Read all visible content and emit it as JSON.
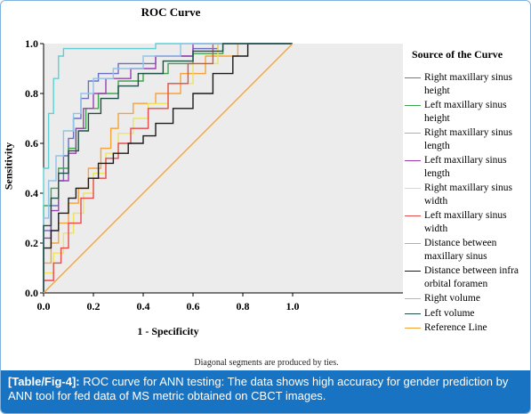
{
  "chart_data": {
    "type": "line",
    "title": "ROC Curve",
    "xlabel": "1 - Specificity",
    "ylabel": "Sensitivity",
    "xlim": [
      0,
      1
    ],
    "ylim": [
      0,
      1
    ],
    "x_ticks": [
      "0.0",
      "0.2",
      "0.4",
      "0.6",
      "0.8",
      "1.0"
    ],
    "y_ticks": [
      "0.0",
      "0.2",
      "0.4",
      "0.6",
      "0.8",
      "1.0"
    ],
    "grid": false,
    "legend_title": "Source of the Curve",
    "legend_position": "right",
    "footnote": "Diagonal segments are produced by ties.",
    "series": [
      {
        "name": "Right maxillary sinus height",
        "color": "#6a6fc0",
        "points": [
          [
            0,
            0
          ],
          [
            0,
            0.25
          ],
          [
            0.03,
            0.25
          ],
          [
            0.03,
            0.35
          ],
          [
            0.06,
            0.35
          ],
          [
            0.06,
            0.45
          ],
          [
            0.08,
            0.45
          ],
          [
            0.08,
            0.55
          ],
          [
            0.1,
            0.55
          ],
          [
            0.1,
            0.62
          ],
          [
            0.12,
            0.62
          ],
          [
            0.12,
            0.7
          ],
          [
            0.15,
            0.7
          ],
          [
            0.15,
            0.78
          ],
          [
            0.18,
            0.78
          ],
          [
            0.18,
            0.85
          ],
          [
            0.22,
            0.85
          ],
          [
            0.22,
            0.88
          ],
          [
            0.3,
            0.88
          ],
          [
            0.3,
            0.92
          ],
          [
            0.45,
            0.92
          ],
          [
            0.45,
            0.95
          ],
          [
            0.6,
            0.95
          ],
          [
            0.6,
            0.98
          ],
          [
            0.7,
            0.98
          ],
          [
            0.7,
            1
          ],
          [
            1,
            1
          ]
        ]
      },
      {
        "name": "Left maxillary sinus height",
        "color": "#3fa34d",
        "points": [
          [
            0,
            0
          ],
          [
            0,
            0.35
          ],
          [
            0.03,
            0.35
          ],
          [
            0.03,
            0.42
          ],
          [
            0.06,
            0.42
          ],
          [
            0.06,
            0.5
          ],
          [
            0.1,
            0.5
          ],
          [
            0.1,
            0.58
          ],
          [
            0.13,
            0.58
          ],
          [
            0.13,
            0.66
          ],
          [
            0.17,
            0.66
          ],
          [
            0.17,
            0.74
          ],
          [
            0.22,
            0.74
          ],
          [
            0.22,
            0.8
          ],
          [
            0.3,
            0.8
          ],
          [
            0.3,
            0.85
          ],
          [
            0.4,
            0.85
          ],
          [
            0.4,
            0.88
          ],
          [
            0.5,
            0.88
          ],
          [
            0.5,
            0.92
          ],
          [
            0.6,
            0.92
          ],
          [
            0.6,
            0.96
          ],
          [
            0.72,
            0.96
          ],
          [
            0.72,
            1
          ],
          [
            1,
            1
          ]
        ]
      },
      {
        "name": "Right maxillary sinus length",
        "color": "#f5a23a",
        "points": [
          [
            0,
            0
          ],
          [
            0,
            0.12
          ],
          [
            0.03,
            0.12
          ],
          [
            0.03,
            0.2
          ],
          [
            0.06,
            0.2
          ],
          [
            0.06,
            0.28
          ],
          [
            0.1,
            0.28
          ],
          [
            0.1,
            0.36
          ],
          [
            0.14,
            0.36
          ],
          [
            0.14,
            0.42
          ],
          [
            0.18,
            0.42
          ],
          [
            0.18,
            0.5
          ],
          [
            0.23,
            0.5
          ],
          [
            0.23,
            0.58
          ],
          [
            0.27,
            0.58
          ],
          [
            0.27,
            0.66
          ],
          [
            0.3,
            0.66
          ],
          [
            0.3,
            0.72
          ],
          [
            0.36,
            0.72
          ],
          [
            0.36,
            0.76
          ],
          [
            0.45,
            0.76
          ],
          [
            0.45,
            0.8
          ],
          [
            0.55,
            0.8
          ],
          [
            0.55,
            0.88
          ],
          [
            0.65,
            0.88
          ],
          [
            0.65,
            0.95
          ],
          [
            0.78,
            0.95
          ],
          [
            0.78,
            1
          ],
          [
            1,
            1
          ]
        ]
      },
      {
        "name": "Left maxillary sinus length",
        "color": "#9b3fb0",
        "points": [
          [
            0,
            0
          ],
          [
            0,
            0.22
          ],
          [
            0.03,
            0.22
          ],
          [
            0.03,
            0.33
          ],
          [
            0.06,
            0.33
          ],
          [
            0.06,
            0.45
          ],
          [
            0.1,
            0.45
          ],
          [
            0.1,
            0.56
          ],
          [
            0.13,
            0.56
          ],
          [
            0.13,
            0.66
          ],
          [
            0.16,
            0.66
          ],
          [
            0.16,
            0.74
          ],
          [
            0.2,
            0.74
          ],
          [
            0.2,
            0.8
          ],
          [
            0.25,
            0.8
          ],
          [
            0.25,
            0.86
          ],
          [
            0.35,
            0.86
          ],
          [
            0.35,
            0.9
          ],
          [
            0.45,
            0.9
          ],
          [
            0.45,
            0.95
          ],
          [
            0.6,
            0.95
          ],
          [
            0.6,
            1
          ],
          [
            1,
            1
          ]
        ]
      },
      {
        "name": "Right maxillary sinus width",
        "color": "#efe35a",
        "points": [
          [
            0,
            0
          ],
          [
            0,
            0.08
          ],
          [
            0.04,
            0.08
          ],
          [
            0.04,
            0.16
          ],
          [
            0.08,
            0.16
          ],
          [
            0.08,
            0.24
          ],
          [
            0.12,
            0.24
          ],
          [
            0.12,
            0.32
          ],
          [
            0.16,
            0.32
          ],
          [
            0.16,
            0.4
          ],
          [
            0.2,
            0.4
          ],
          [
            0.2,
            0.48
          ],
          [
            0.25,
            0.48
          ],
          [
            0.25,
            0.56
          ],
          [
            0.3,
            0.56
          ],
          [
            0.3,
            0.64
          ],
          [
            0.36,
            0.64
          ],
          [
            0.36,
            0.7
          ],
          [
            0.42,
            0.7
          ],
          [
            0.42,
            0.76
          ],
          [
            0.5,
            0.76
          ],
          [
            0.5,
            0.84
          ],
          [
            0.6,
            0.84
          ],
          [
            0.6,
            0.92
          ],
          [
            0.7,
            0.92
          ],
          [
            0.7,
            1
          ],
          [
            1,
            1
          ]
        ]
      },
      {
        "name": "Left maxillary sinus width",
        "color": "#e54b4b",
        "points": [
          [
            0,
            0
          ],
          [
            0,
            0.05
          ],
          [
            0.04,
            0.05
          ],
          [
            0.04,
            0.12
          ],
          [
            0.07,
            0.12
          ],
          [
            0.07,
            0.18
          ],
          [
            0.1,
            0.18
          ],
          [
            0.1,
            0.28
          ],
          [
            0.15,
            0.28
          ],
          [
            0.15,
            0.38
          ],
          [
            0.2,
            0.38
          ],
          [
            0.2,
            0.46
          ],
          [
            0.25,
            0.46
          ],
          [
            0.25,
            0.54
          ],
          [
            0.3,
            0.54
          ],
          [
            0.3,
            0.6
          ],
          [
            0.35,
            0.6
          ],
          [
            0.35,
            0.66
          ],
          [
            0.42,
            0.66
          ],
          [
            0.42,
            0.74
          ],
          [
            0.5,
            0.74
          ],
          [
            0.5,
            0.84
          ],
          [
            0.58,
            0.84
          ],
          [
            0.58,
            0.92
          ],
          [
            0.68,
            0.92
          ],
          [
            0.68,
            1
          ],
          [
            1,
            1
          ]
        ]
      },
      {
        "name": "Distance between maxillary sinus",
        "color": "#5fcfd3",
        "points": [
          [
            0,
            0
          ],
          [
            0,
            0.5
          ],
          [
            0.02,
            0.5
          ],
          [
            0.02,
            0.72
          ],
          [
            0.04,
            0.72
          ],
          [
            0.04,
            0.86
          ],
          [
            0.06,
            0.86
          ],
          [
            0.06,
            0.95
          ],
          [
            0.08,
            0.95
          ],
          [
            0.08,
            0.98
          ],
          [
            0.45,
            0.98
          ],
          [
            0.45,
            1
          ],
          [
            1,
            1
          ]
        ]
      },
      {
        "name": "Distance between infra orbital foramen",
        "color": "#1a1a1a",
        "points": [
          [
            0,
            0
          ],
          [
            0,
            0.18
          ],
          [
            0.03,
            0.18
          ],
          [
            0.03,
            0.25
          ],
          [
            0.06,
            0.25
          ],
          [
            0.06,
            0.32
          ],
          [
            0.1,
            0.32
          ],
          [
            0.1,
            0.38
          ],
          [
            0.13,
            0.38
          ],
          [
            0.13,
            0.42
          ],
          [
            0.18,
            0.42
          ],
          [
            0.18,
            0.46
          ],
          [
            0.22,
            0.46
          ],
          [
            0.22,
            0.52
          ],
          [
            0.28,
            0.52
          ],
          [
            0.28,
            0.56
          ],
          [
            0.34,
            0.56
          ],
          [
            0.34,
            0.6
          ],
          [
            0.4,
            0.6
          ],
          [
            0.4,
            0.63
          ],
          [
            0.45,
            0.63
          ],
          [
            0.45,
            0.68
          ],
          [
            0.52,
            0.68
          ],
          [
            0.52,
            0.74
          ],
          [
            0.6,
            0.74
          ],
          [
            0.6,
            0.8
          ],
          [
            0.68,
            0.8
          ],
          [
            0.68,
            0.88
          ],
          [
            0.76,
            0.88
          ],
          [
            0.76,
            0.95
          ],
          [
            0.82,
            0.95
          ],
          [
            0.82,
            1
          ],
          [
            1,
            1
          ]
        ]
      },
      {
        "name": "Right volume",
        "color": "#8fc3e8",
        "points": [
          [
            0,
            0
          ],
          [
            0,
            0.3
          ],
          [
            0.02,
            0.3
          ],
          [
            0.02,
            0.45
          ],
          [
            0.05,
            0.45
          ],
          [
            0.05,
            0.55
          ],
          [
            0.08,
            0.55
          ],
          [
            0.08,
            0.65
          ],
          [
            0.12,
            0.65
          ],
          [
            0.12,
            0.72
          ],
          [
            0.15,
            0.72
          ],
          [
            0.15,
            0.8
          ],
          [
            0.2,
            0.8
          ],
          [
            0.2,
            0.86
          ],
          [
            0.28,
            0.86
          ],
          [
            0.28,
            0.9
          ],
          [
            0.4,
            0.9
          ],
          [
            0.4,
            0.95
          ],
          [
            0.55,
            0.95
          ],
          [
            0.55,
            1
          ],
          [
            1,
            1
          ]
        ]
      },
      {
        "name": "Left volume",
        "color": "#1f4f46",
        "points": [
          [
            0,
            0
          ],
          [
            0,
            0.27
          ],
          [
            0.03,
            0.27
          ],
          [
            0.03,
            0.38
          ],
          [
            0.06,
            0.38
          ],
          [
            0.06,
            0.48
          ],
          [
            0.1,
            0.48
          ],
          [
            0.1,
            0.57
          ],
          [
            0.14,
            0.57
          ],
          [
            0.14,
            0.65
          ],
          [
            0.18,
            0.65
          ],
          [
            0.18,
            0.72
          ],
          [
            0.23,
            0.72
          ],
          [
            0.23,
            0.78
          ],
          [
            0.3,
            0.78
          ],
          [
            0.3,
            0.83
          ],
          [
            0.38,
            0.83
          ],
          [
            0.38,
            0.88
          ],
          [
            0.48,
            0.88
          ],
          [
            0.48,
            0.93
          ],
          [
            0.6,
            0.93
          ],
          [
            0.6,
            0.97
          ],
          [
            0.72,
            0.97
          ],
          [
            0.72,
            1
          ],
          [
            1,
            1
          ]
        ]
      },
      {
        "name": "Reference Line",
        "color": "#f5a23a",
        "points": [
          [
            0,
            0
          ],
          [
            1,
            1
          ]
        ]
      }
    ]
  },
  "caption": {
    "label": "[Table/Fig-4]:",
    "text": " ROC curve for ANN testing: The data shows high accuracy for gender prediction by ANN tool for fed data of MS metric obtained on CBCT images."
  }
}
